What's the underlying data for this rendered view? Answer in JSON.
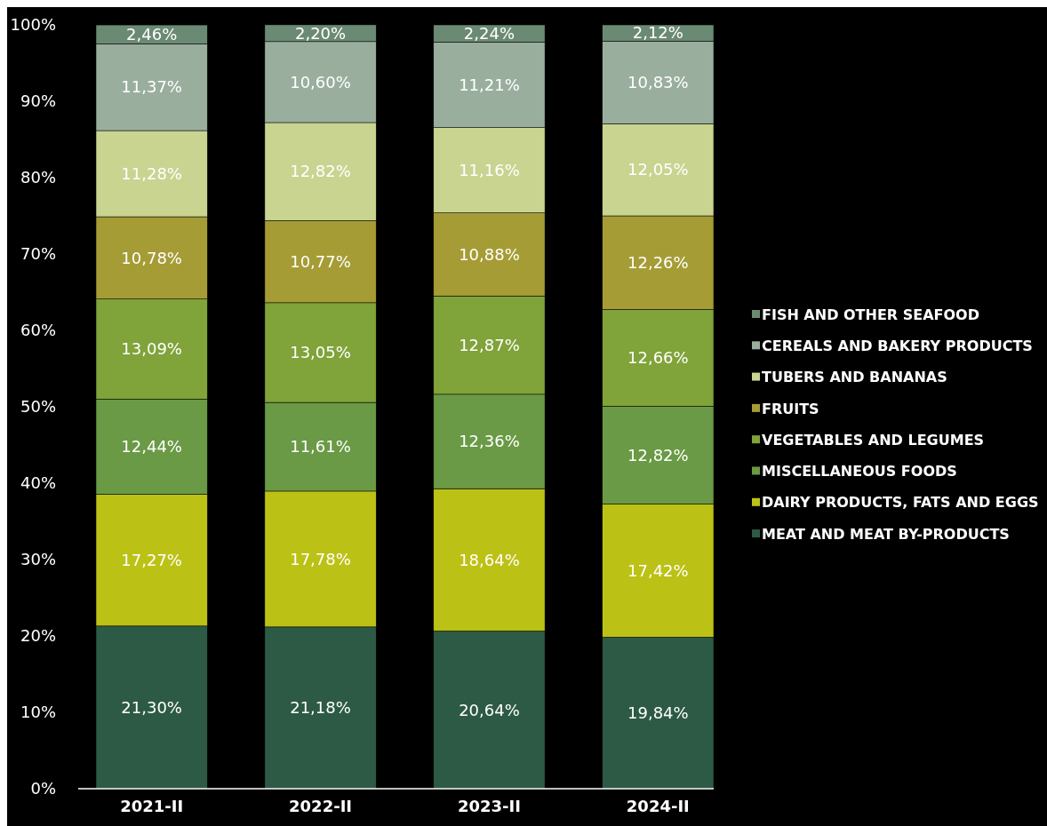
{
  "chart_data": {
    "type": "bar",
    "stacked": true,
    "categories": [
      "2021-II",
      "2022-II",
      "2023-II",
      "2024-II"
    ],
    "ylim": [
      0,
      100
    ],
    "yticks": [
      {
        "value": 0,
        "label": "0%"
      },
      {
        "value": 10,
        "label": "10%"
      },
      {
        "value": 20,
        "label": "20%"
      },
      {
        "value": 30,
        "label": "30%"
      },
      {
        "value": 40,
        "label": "40%"
      },
      {
        "value": 50,
        "label": "50%"
      },
      {
        "value": 60,
        "label": "60%"
      },
      {
        "value": 70,
        "label": "70%"
      },
      {
        "value": 80,
        "label": "80%"
      },
      {
        "value": 90,
        "label": "90%"
      },
      {
        "value": 100,
        "label": "100%"
      }
    ],
    "legend": "right",
    "grid": false,
    "series": [
      {
        "name": "MEAT AND MEAT BY-PRODUCTS",
        "color": "#2d5a45",
        "values": [
          21.3,
          21.18,
          20.64,
          19.84
        ],
        "value_labels": [
          "21,30%",
          "21,18%",
          "20,64%",
          "19,84%"
        ]
      },
      {
        "name": "DAIRY PRODUCTS, FATS AND EGGS",
        "color": "#bcc116",
        "values": [
          17.27,
          17.78,
          18.64,
          17.42
        ],
        "value_labels": [
          "17,27%",
          "17,78%",
          "18,64%",
          "17,42%"
        ]
      },
      {
        "name": "MISCELLANEOUS FOODS",
        "color": "#6a9a45",
        "values": [
          12.44,
          11.61,
          12.36,
          12.82
        ],
        "value_labels": [
          "12,44%",
          "11,61%",
          "12,36%",
          "12,82%"
        ]
      },
      {
        "name": "VEGETABLES AND LEGUMES",
        "color": "#80a33a",
        "values": [
          13.09,
          13.05,
          12.87,
          12.66
        ],
        "value_labels": [
          "13,09%",
          "13,05%",
          "12,87%",
          "12,66%"
        ]
      },
      {
        "name": "FRUITS",
        "color": "#a59c35",
        "values": [
          10.78,
          10.77,
          10.88,
          12.26
        ],
        "value_labels": [
          "10,78%",
          "10,77%",
          "10,88%",
          "12,26%"
        ]
      },
      {
        "name": "TUBERS AND BANANAS",
        "color": "#c9d491",
        "values": [
          11.28,
          12.82,
          11.16,
          12.05
        ],
        "value_labels": [
          "11,28%",
          "12,82%",
          "11,16%",
          "12,05%"
        ]
      },
      {
        "name": "CEREALS AND BAKERY PRODUCTS",
        "color": "#9aae9e",
        "values": [
          11.37,
          10.6,
          11.21,
          10.83
        ],
        "value_labels": [
          "11,37%",
          "10,60%",
          "11,21%",
          "10,83%"
        ]
      },
      {
        "name": "FISH AND OTHER SEAFOOD",
        "color": "#6b8a73",
        "values": [
          2.46,
          2.2,
          2.24,
          2.12
        ],
        "value_labels": [
          "2,46%",
          "2,20%",
          "2,24%",
          "2,12%"
        ]
      }
    ]
  }
}
